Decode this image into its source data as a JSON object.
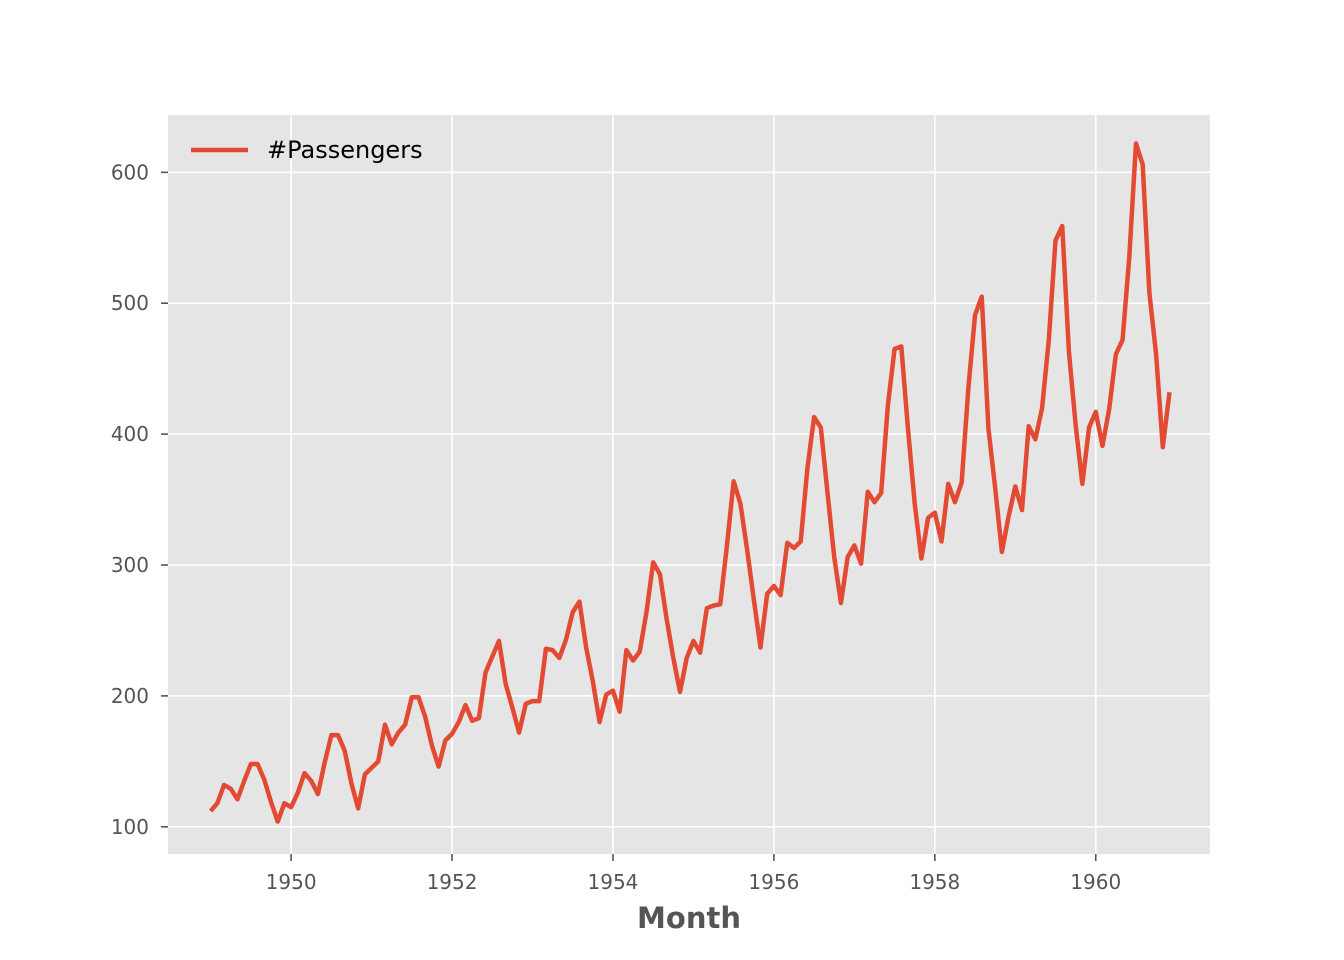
{
  "chart_data": {
    "type": "line",
    "title": "",
    "xlabel": "Month",
    "ylabel": "",
    "xlim": [
      1948.47,
      1961.42
    ],
    "ylim": [
      79.2,
      643.8
    ],
    "xticks": [
      1950,
      1952,
      1954,
      1956,
      1958,
      1960
    ],
    "yticks": [
      100,
      200,
      300,
      400,
      500,
      600
    ],
    "grid": true,
    "legend_position": "top-left",
    "colors": {
      "line": "#E24A33",
      "background": "#E5E5E5",
      "grid": "#FFFFFF",
      "tick": "#555555"
    },
    "x_start": "1949-01",
    "x_end": "1960-12",
    "series": [
      {
        "name": "#Passengers",
        "values": [
          112,
          118,
          132,
          129,
          121,
          135,
          148,
          148,
          136,
          119,
          104,
          118,
          115,
          126,
          141,
          135,
          125,
          149,
          170,
          170,
          158,
          133,
          114,
          140,
          145,
          150,
          178,
          163,
          172,
          178,
          199,
          199,
          184,
          162,
          146,
          166,
          171,
          180,
          193,
          181,
          183,
          218,
          230,
          242,
          209,
          191,
          172,
          194,
          196,
          196,
          236,
          235,
          229,
          243,
          264,
          272,
          237,
          211,
          180,
          201,
          204,
          188,
          235,
          227,
          234,
          264,
          302,
          293,
          259,
          229,
          203,
          229,
          242,
          233,
          267,
          269,
          270,
          315,
          364,
          347,
          312,
          274,
          237,
          278,
          284,
          277,
          317,
          313,
          318,
          374,
          413,
          405,
          355,
          306,
          271,
          306,
          315,
          301,
          356,
          348,
          355,
          422,
          465,
          467,
          404,
          347,
          305,
          336,
          340,
          318,
          362,
          348,
          363,
          435,
          491,
          505,
          404,
          359,
          310,
          337,
          360,
          342,
          406,
          396,
          420,
          472,
          548,
          559,
          463,
          407,
          362,
          405,
          417,
          391,
          419,
          461,
          472,
          535,
          622,
          606,
          508,
          461,
          390,
          432
        ]
      }
    ]
  }
}
